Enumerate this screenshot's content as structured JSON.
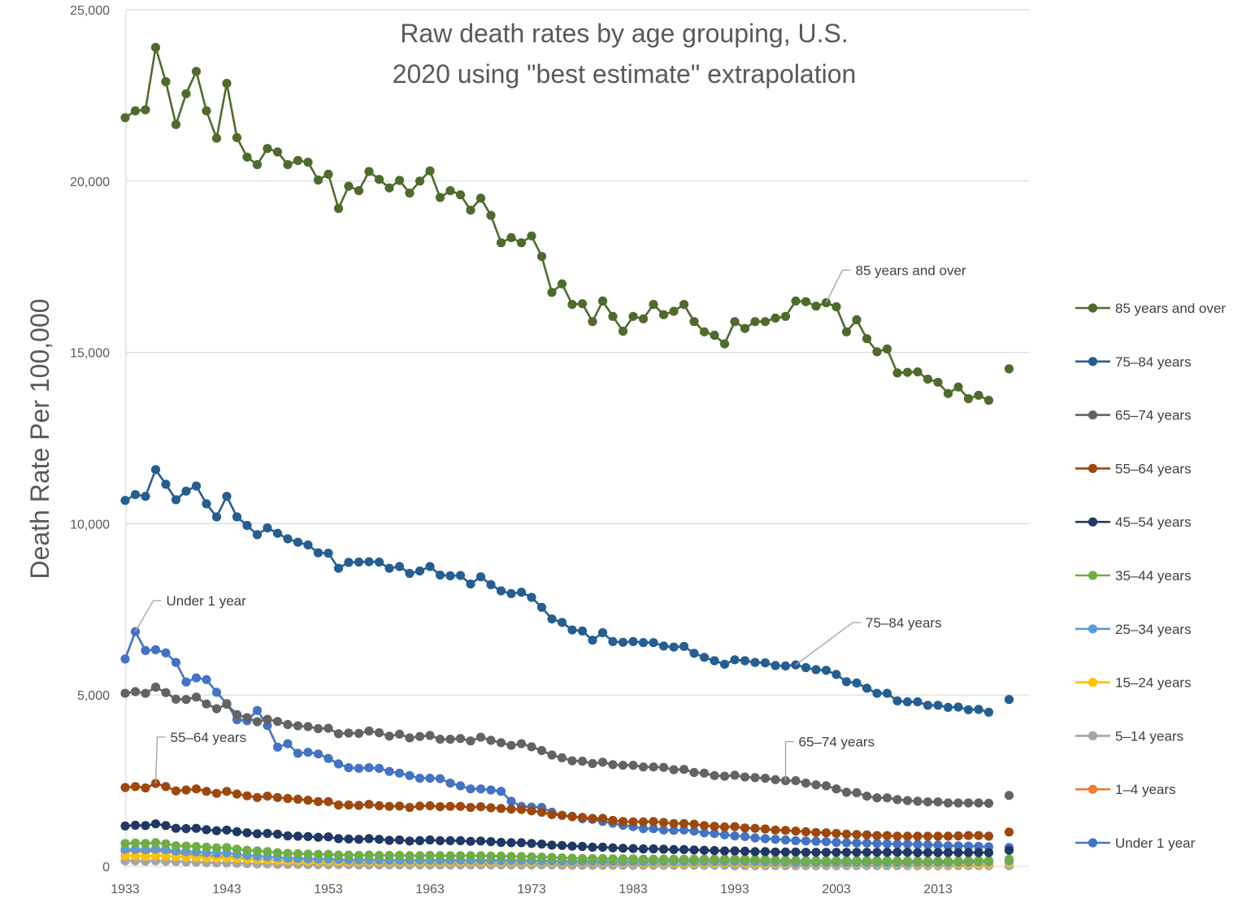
{
  "chart_data": {
    "type": "line",
    "title_lines": [
      "Raw death rates by age grouping, U.S.",
      "2020 using \"best estimate\" extrapolation"
    ],
    "xlabel": "",
    "ylabel": "Death Rate Per 100,000",
    "ylim": [
      0,
      25000
    ],
    "xlim": [
      1933,
      2020
    ],
    "x_ticks": [
      1933,
      1943,
      1953,
      1963,
      1973,
      1983,
      1993,
      2003,
      2013
    ],
    "y_ticks": [
      0,
      5000,
      10000,
      15000,
      20000,
      25000
    ],
    "y_tick_labels": [
      "0",
      "5,000",
      "10,000",
      "15,000",
      "20,000",
      "25,000"
    ],
    "grid": "horizontal",
    "legend_position": "right",
    "x_start": 1933,
    "x_end": 2017,
    "extrapolated_year": 2020,
    "series": [
      {
        "name": "85 years and over",
        "color": "#4e6b2c",
        "values": [
          21850,
          22050,
          22080,
          23900,
          22900,
          21650,
          22550,
          23200,
          22050,
          21250,
          22850,
          21270,
          20700,
          20480,
          20950,
          20850,
          20480,
          20600,
          20550,
          20030,
          20200,
          19200,
          19850,
          19720,
          20280,
          20050,
          19800,
          20020,
          19650,
          20000,
          20300,
          19520,
          19720,
          19600,
          19150,
          19500,
          19000,
          18200,
          18350,
          18200,
          18400,
          17800,
          16750,
          17000,
          16400,
          16420,
          15900,
          16500,
          16050,
          15620,
          16050,
          15980,
          16400,
          16100,
          16200,
          16400,
          15900,
          15600,
          15500,
          15250,
          15900,
          15700,
          15900,
          15900,
          16000,
          16050,
          16500,
          16480,
          16350,
          16450,
          16330,
          15600,
          15950,
          15400,
          15020,
          15100,
          14400,
          14420,
          14430,
          14220,
          14130,
          13800,
          13990,
          13650,
          13750,
          13600
        ],
        "extrapolated_value": 14520
      },
      {
        "name": "75–84 years",
        "color": "#255e91",
        "values": [
          10680,
          10850,
          10800,
          11580,
          11150,
          10700,
          10950,
          11100,
          10580,
          10200,
          10800,
          10200,
          9950,
          9680,
          9880,
          9720,
          9560,
          9460,
          9380,
          9150,
          9140,
          8700,
          8870,
          8880,
          8890,
          8880,
          8700,
          8750,
          8550,
          8620,
          8750,
          8500,
          8480,
          8490,
          8240,
          8450,
          8220,
          8040,
          7960,
          8000,
          7850,
          7560,
          7220,
          7120,
          6900,
          6870,
          6600,
          6820,
          6560,
          6540,
          6560,
          6530,
          6530,
          6430,
          6400,
          6420,
          6220,
          6100,
          6000,
          5900,
          6030,
          6000,
          5950,
          5940,
          5860,
          5850,
          5880,
          5800,
          5740,
          5720,
          5600,
          5390,
          5350,
          5200,
          5050,
          5050,
          4830,
          4800,
          4800,
          4700,
          4700,
          4640,
          4650,
          4570,
          4580,
          4500
        ],
        "extrapolated_value": 4870
      },
      {
        "name": "65–74 years",
        "color": "#636363",
        "values": [
          5050,
          5100,
          5050,
          5230,
          5070,
          4880,
          4870,
          4940,
          4740,
          4600,
          4730,
          4430,
          4340,
          4220,
          4290,
          4230,
          4140,
          4100,
          4080,
          4020,
          4030,
          3870,
          3890,
          3880,
          3950,
          3900,
          3800,
          3860,
          3750,
          3790,
          3820,
          3710,
          3710,
          3730,
          3660,
          3770,
          3680,
          3610,
          3530,
          3580,
          3490,
          3380,
          3250,
          3170,
          3080,
          3070,
          3000,
          3040,
          2970,
          2950,
          2950,
          2900,
          2900,
          2890,
          2820,
          2830,
          2740,
          2720,
          2650,
          2630,
          2660,
          2610,
          2590,
          2570,
          2530,
          2500,
          2500,
          2430,
          2380,
          2350,
          2260,
          2160,
          2150,
          2050,
          2000,
          2000,
          1950,
          1920,
          1900,
          1880,
          1880,
          1850,
          1850,
          1850,
          1850,
          1840
        ],
        "extrapolated_value": 2070
      },
      {
        "name": "55–64 years",
        "color": "#9e480e",
        "values": [
          2300,
          2330,
          2290,
          2420,
          2330,
          2200,
          2230,
          2260,
          2190,
          2130,
          2190,
          2110,
          2060,
          2010,
          2050,
          2010,
          1980,
          1960,
          1930,
          1890,
          1890,
          1790,
          1790,
          1780,
          1810,
          1770,
          1750,
          1760,
          1720,
          1760,
          1770,
          1740,
          1750,
          1750,
          1720,
          1740,
          1710,
          1690,
          1670,
          1660,
          1620,
          1580,
          1510,
          1490,
          1450,
          1430,
          1400,
          1400,
          1340,
          1310,
          1300,
          1300,
          1310,
          1280,
          1250,
          1250,
          1230,
          1190,
          1170,
          1150,
          1160,
          1120,
          1110,
          1090,
          1060,
          1050,
          1030,
          1010,
          990,
          980,
          960,
          940,
          930,
          920,
          900,
          900,
          880,
          880,
          880,
          880,
          880,
          880,
          890,
          900,
          900,
          880
        ],
        "extrapolated_value": 1000
      },
      {
        "name": "45–54 years",
        "color": "#203864",
        "values": [
          1180,
          1200,
          1190,
          1240,
          1190,
          1110,
          1100,
          1110,
          1070,
          1040,
          1060,
          1010,
          980,
          950,
          960,
          940,
          890,
          880,
          870,
          850,
          860,
          810,
          800,
          790,
          810,
          790,
          760,
          770,
          740,
          750,
          770,
          750,
          750,
          750,
          730,
          740,
          720,
          700,
          690,
          690,
          670,
          650,
          620,
          610,
          590,
          580,
          560,
          560,
          540,
          530,
          520,
          510,
          510,
          500,
          490,
          490,
          480,
          470,
          460,
          450,
          450,
          440,
          430,
          430,
          420,
          420,
          420,
          410,
          410,
          410,
          410,
          410,
          410,
          410,
          410,
          410,
          410,
          410,
          400,
          400,
          400,
          400,
          400,
          400,
          400,
          400
        ],
        "extrapolated_value": 470
      },
      {
        "name": "35–44 years",
        "color": "#70ad47",
        "values": [
          670,
          680,
          670,
          690,
          660,
          600,
          590,
          580,
          560,
          540,
          550,
          500,
          470,
          450,
          430,
          400,
          380,
          370,
          360,
          350,
          350,
          330,
          330,
          320,
          330,
          320,
          320,
          320,
          310,
          310,
          320,
          310,
          310,
          310,
          310,
          310,
          300,
          300,
          290,
          290,
          280,
          270,
          260,
          250,
          240,
          230,
          230,
          230,
          220,
          220,
          220,
          210,
          210,
          210,
          210,
          210,
          210,
          210,
          210,
          210,
          210,
          210,
          200,
          200,
          190,
          180,
          180,
          170,
          170,
          170,
          170,
          170,
          170,
          170,
          170,
          170,
          160,
          160,
          160,
          160,
          160,
          160,
          160,
          170,
          170,
          170
        ],
        "extrapolated_value": 210
      },
      {
        "name": "25–34 years",
        "color": "#5b9bd5",
        "values": [
          500,
          500,
          490,
          510,
          490,
          450,
          430,
          420,
          400,
          380,
          390,
          350,
          320,
          300,
          280,
          260,
          240,
          230,
          220,
          210,
          210,
          200,
          190,
          190,
          190,
          190,
          180,
          180,
          180,
          180,
          180,
          180,
          180,
          180,
          180,
          180,
          180,
          170,
          170,
          170,
          170,
          160,
          160,
          150,
          150,
          150,
          150,
          150,
          150,
          140,
          140,
          140,
          140,
          140,
          140,
          140,
          140,
          140,
          140,
          140,
          140,
          140,
          140,
          130,
          130,
          120,
          110,
          110,
          110,
          110,
          110,
          110,
          110,
          110,
          110,
          110,
          110,
          110,
          110,
          110,
          110,
          110,
          120,
          120,
          130,
          130
        ],
        "extrapolated_value": 160
      },
      {
        "name": "15–24 years",
        "color": "#ffc000",
        "values": [
          310,
          310,
          300,
          310,
          300,
          280,
          270,
          260,
          250,
          240,
          250,
          230,
          210,
          200,
          190,
          180,
          170,
          160,
          150,
          150,
          150,
          140,
          140,
          140,
          140,
          140,
          130,
          130,
          130,
          130,
          130,
          130,
          130,
          130,
          130,
          130,
          130,
          130,
          130,
          130,
          130,
          130,
          120,
          120,
          120,
          120,
          120,
          120,
          120,
          110,
          110,
          100,
          100,
          100,
          100,
          100,
          100,
          100,
          100,
          100,
          100,
          100,
          100,
          90,
          90,
          90,
          80,
          80,
          80,
          80,
          80,
          80,
          80,
          80,
          80,
          80,
          80,
          80,
          70,
          70,
          70,
          70,
          70,
          70,
          70,
          70
        ],
        "extrapolated_value": 90
      },
      {
        "name": "5–14 years",
        "color": "#a5a5a5",
        "values": [
          160,
          160,
          150,
          160,
          150,
          140,
          130,
          120,
          110,
          100,
          100,
          90,
          80,
          70,
          70,
          60,
          60,
          60,
          50,
          50,
          50,
          50,
          50,
          40,
          40,
          40,
          40,
          40,
          40,
          40,
          40,
          40,
          40,
          40,
          40,
          40,
          40,
          40,
          40,
          40,
          40,
          40,
          40,
          30,
          30,
          30,
          30,
          30,
          30,
          30,
          30,
          30,
          30,
          30,
          30,
          30,
          30,
          30,
          30,
          30,
          20,
          20,
          20,
          20,
          20,
          20,
          20,
          20,
          20,
          20,
          20,
          20,
          20,
          20,
          20,
          20,
          20,
          20,
          20,
          20,
          20,
          20,
          20,
          20,
          20,
          20
        ],
        "extrapolated_value": 20
      },
      {
        "name": "1–4 years",
        "color": "#ed7d31",
        "values": [
          440,
          450,
          430,
          460,
          430,
          380,
          360,
          330,
          310,
          290,
          300,
          260,
          230,
          210,
          190,
          170,
          150,
          140,
          130,
          130,
          120,
          110,
          110,
          100,
          100,
          100,
          100,
          100,
          100,
          100,
          100,
          90,
          90,
          90,
          90,
          90,
          90,
          90,
          80,
          80,
          80,
          80,
          70,
          70,
          70,
          70,
          70,
          70,
          60,
          60,
          60,
          60,
          60,
          60,
          50,
          50,
          50,
          50,
          50,
          50,
          50,
          50,
          40,
          40,
          40,
          40,
          40,
          40,
          30,
          30,
          30,
          30,
          30,
          30,
          30,
          30,
          30,
          30,
          30,
          30,
          30,
          30,
          30,
          30,
          30,
          30
        ],
        "extrapolated_value": 30
      },
      {
        "name": "Under 1 year",
        "color": "#4472c4",
        "values": [
          6050,
          6850,
          6300,
          6320,
          6230,
          5950,
          5380,
          5500,
          5450,
          5080,
          4750,
          4280,
          4250,
          4550,
          4110,
          3480,
          3580,
          3300,
          3330,
          3280,
          3150,
          2990,
          2880,
          2860,
          2880,
          2860,
          2770,
          2720,
          2650,
          2570,
          2570,
          2560,
          2430,
          2350,
          2260,
          2260,
          2230,
          2190,
          1900,
          1750,
          1730,
          1720,
          1580,
          1490,
          1460,
          1390,
          1370,
          1310,
          1260,
          1200,
          1160,
          1100,
          1100,
          1060,
          1050,
          1060,
          1030,
          980,
          960,
          920,
          890,
          870,
          830,
          810,
          790,
          770,
          750,
          740,
          730,
          720,
          700,
          690,
          680,
          680,
          670,
          660,
          650,
          650,
          640,
          630,
          620,
          600,
          600,
          590,
          580,
          570
        ],
        "extrapolated_value": 550
      }
    ],
    "annotations": [
      {
        "text": "85 years and over",
        "series": "85 years and over",
        "year": 2002
      },
      {
        "text": "75–84 years",
        "series": "75–84 years",
        "year": 1999
      },
      {
        "text": "Under 1 year",
        "series": "Under 1 year",
        "year": 1934
      },
      {
        "text": "65–74 years",
        "series": "65–74 years",
        "year": 1998
      },
      {
        "text": "55–64 years",
        "series": "55–64 years",
        "year": 1936
      }
    ]
  }
}
